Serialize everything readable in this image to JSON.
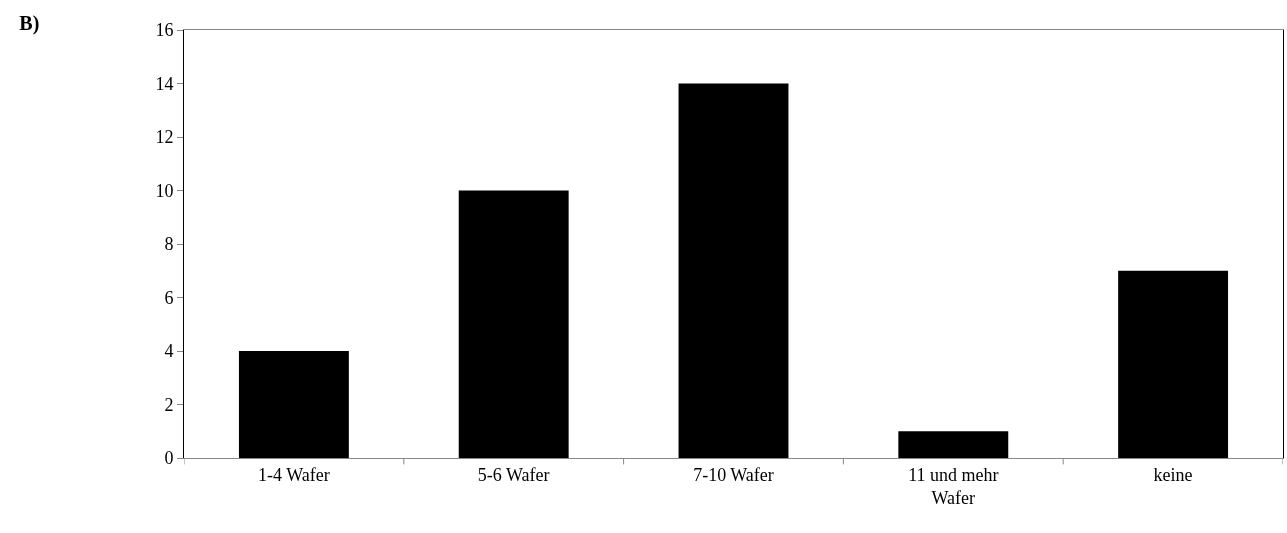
{
  "chart_data": {
    "type": "bar",
    "title": "B)",
    "categories": [
      "1-4 Wafer",
      "5-6 Wafer",
      "7-10 Wafer",
      "11 und mehr Wafer",
      "keine"
    ],
    "values": [
      4,
      10,
      14,
      1,
      7
    ],
    "color": "#000000",
    "ylim": [
      0,
      16
    ],
    "yticks": [
      0,
      2,
      4,
      6,
      8,
      10,
      12,
      14,
      16
    ],
    "grid": false
  }
}
